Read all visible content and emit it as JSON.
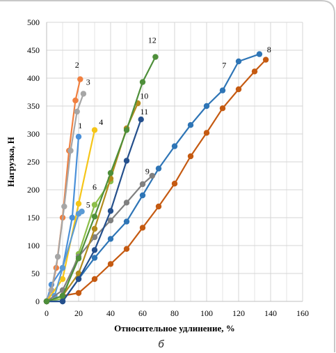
{
  "caption": "б",
  "chart_data": {
    "type": "line",
    "title": "",
    "xlabel": "Относительное удлинение, %",
    "ylabel": "Нагрузка, Н",
    "xlim": [
      0,
      160
    ],
    "ylim": [
      0,
      500
    ],
    "xticks": [
      0,
      20,
      40,
      60,
      80,
      100,
      120,
      140,
      160
    ],
    "yticks": [
      0,
      50,
      100,
      150,
      200,
      250,
      300,
      350,
      400,
      450,
      500
    ],
    "grid": true,
    "legend": "none",
    "series": [
      {
        "name": "1",
        "color": "#4a90d9",
        "label_at": [
          21,
          310
        ],
        "points": [
          [
            0,
            0
          ],
          [
            3,
            30
          ],
          [
            10,
            60
          ],
          [
            16,
            150
          ],
          [
            20,
            295
          ]
        ]
      },
      {
        "name": "2",
        "color": "#f08040",
        "label_at": [
          19,
          419
        ],
        "points": [
          [
            0,
            0
          ],
          [
            3,
            20
          ],
          [
            6,
            60
          ],
          [
            10,
            150
          ],
          [
            14,
            270
          ],
          [
            18,
            360
          ],
          [
            21,
            398
          ]
        ]
      },
      {
        "name": "3",
        "color": "#a6a6a6",
        "label_at": [
          26,
          388
        ],
        "points": [
          [
            0,
            0
          ],
          [
            3,
            20
          ],
          [
            7,
            80
          ],
          [
            11,
            170
          ],
          [
            15,
            270
          ],
          [
            19,
            340
          ],
          [
            23,
            372
          ]
        ]
      },
      {
        "name": "4",
        "color": "#f5c518",
        "label_at": [
          34,
          316
        ],
        "points": [
          [
            0,
            0
          ],
          [
            10,
            40
          ],
          [
            20,
            175
          ],
          [
            30,
            307
          ]
        ]
      },
      {
        "name": "5",
        "color": "#5b9bd5",
        "label_at": [
          26,
          168
        ],
        "points": [
          [
            0,
            0
          ],
          [
            5,
            10
          ],
          [
            10,
            60
          ],
          [
            20,
            157
          ],
          [
            22,
            161
          ]
        ]
      },
      {
        "name": "6",
        "color": "#8cbf4a",
        "label_at": [
          30,
          200
        ],
        "points": [
          [
            0,
            0
          ],
          [
            10,
            5
          ],
          [
            20,
            85
          ],
          [
            30,
            173
          ],
          [
            40,
            215
          ]
        ]
      },
      {
        "name": "7",
        "color": "#2e75b6",
        "label_at": [
          111,
          418
        ],
        "points": [
          [
            0,
            0
          ],
          [
            10,
            0
          ],
          [
            20,
            40
          ],
          [
            30,
            78
          ],
          [
            40,
            112
          ],
          [
            50,
            143
          ],
          [
            60,
            190
          ],
          [
            70,
            238
          ],
          [
            80,
            278
          ],
          [
            90,
            316
          ],
          [
            100,
            350
          ],
          [
            110,
            378
          ],
          [
            120,
            430
          ],
          [
            133,
            443
          ]
        ]
      },
      {
        "name": "8",
        "color": "#c55a11",
        "label_at": [
          139,
          446
        ],
        "points": [
          [
            0,
            0
          ],
          [
            10,
            10
          ],
          [
            20,
            15
          ],
          [
            30,
            40
          ],
          [
            40,
            67
          ],
          [
            50,
            94
          ],
          [
            60,
            132
          ],
          [
            70,
            170
          ],
          [
            80,
            211
          ],
          [
            90,
            260
          ],
          [
            100,
            302
          ],
          [
            110,
            346
          ],
          [
            120,
            380
          ],
          [
            130,
            412
          ],
          [
            137,
            433
          ]
        ]
      },
      {
        "name": "9",
        "color": "#808080",
        "label_at": [
          63,
          228
        ],
        "points": [
          [
            0,
            0
          ],
          [
            10,
            20
          ],
          [
            20,
            80
          ],
          [
            30,
            115
          ],
          [
            40,
            145
          ],
          [
            50,
            177
          ],
          [
            60,
            210
          ],
          [
            66,
            225
          ]
        ]
      },
      {
        "name": "10",
        "color": "#b38b1d",
        "label_at": [
          61,
          363
        ],
        "points": [
          [
            0,
            0
          ],
          [
            10,
            10
          ],
          [
            20,
            50
          ],
          [
            30,
            130
          ],
          [
            40,
            220
          ],
          [
            50,
            310
          ],
          [
            57,
            355
          ]
        ]
      },
      {
        "name": "11",
        "color": "#244f8c",
        "label_at": [
          61,
          335
        ],
        "points": [
          [
            0,
            0
          ],
          [
            10,
            0
          ],
          [
            20,
            40
          ],
          [
            30,
            92
          ],
          [
            40,
            162
          ],
          [
            50,
            252
          ],
          [
            59,
            326
          ]
        ]
      },
      {
        "name": "12",
        "color": "#4e8f3a",
        "label_at": [
          66,
          463
        ],
        "points": [
          [
            0,
            0
          ],
          [
            10,
            10
          ],
          [
            20,
            77
          ],
          [
            30,
            152
          ],
          [
            40,
            230
          ],
          [
            50,
            307
          ],
          [
            60,
            393
          ],
          [
            68,
            438
          ]
        ]
      }
    ]
  }
}
